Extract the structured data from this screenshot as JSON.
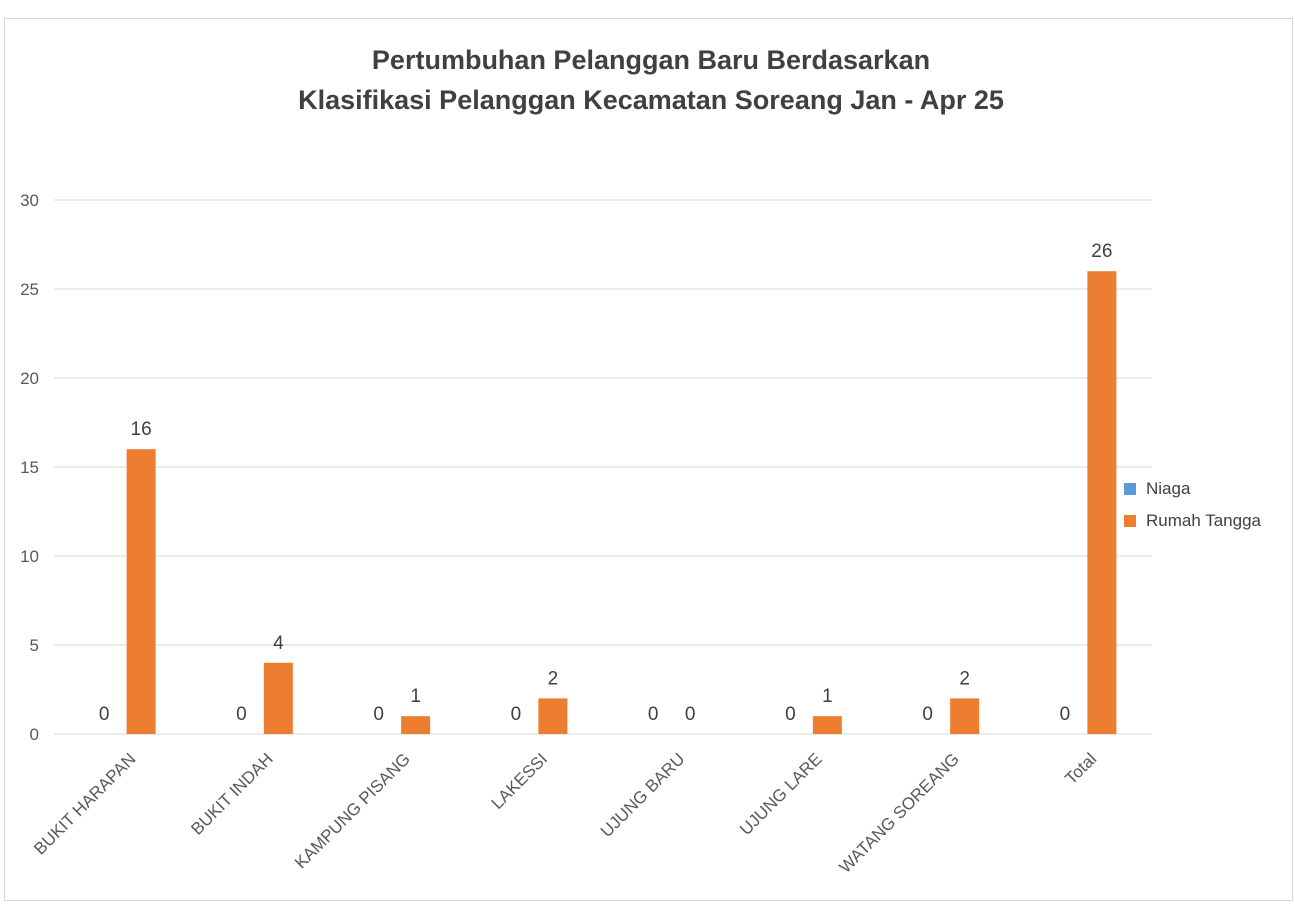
{
  "chart_data": {
    "type": "bar",
    "title_line1": "Pertumbuhan Pelanggan Baru Berdasarkan",
    "title_line2": "Klasifikasi Pelanggan Kecamatan Soreang Jan - Apr 25",
    "categories": [
      "BUKIT HARAPAN",
      "BUKIT INDAH",
      "KAMPUNG PISANG",
      "LAKESSI",
      "UJUNG BARU",
      "UJUNG LARE",
      "WATANG SOREANG",
      "Total"
    ],
    "series": [
      {
        "name": "Niaga",
        "color": "#5b9bd5",
        "values": [
          0,
          0,
          0,
          0,
          0,
          0,
          0,
          0
        ]
      },
      {
        "name": "Rumah Tangga",
        "color": "#ed7d31",
        "values": [
          16,
          4,
          1,
          2,
          0,
          1,
          2,
          26
        ]
      }
    ],
    "ylim": [
      0,
      30
    ],
    "yticks": [
      0,
      5,
      10,
      15,
      20,
      25,
      30
    ],
    "grid": true,
    "data_labels": true,
    "legend_position": "right"
  }
}
